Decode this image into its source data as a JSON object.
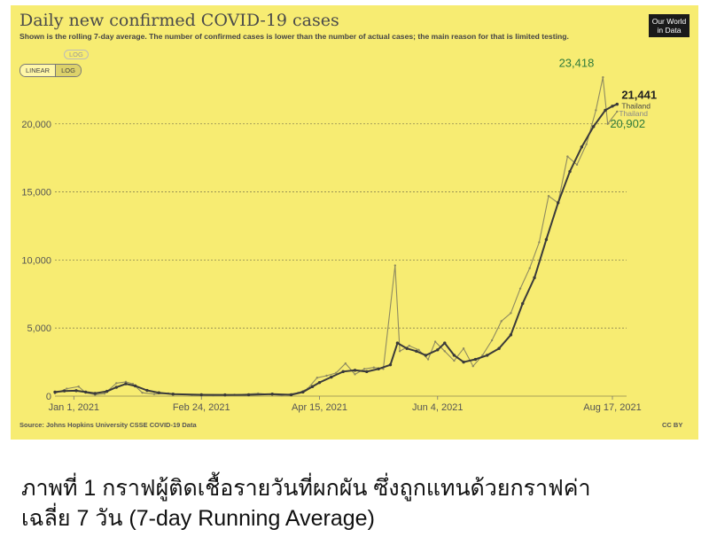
{
  "caption": {
    "line1": "ภาพที่ 1 กราฟผู้ติดเชื้อรายวันที่ผกผัน ซึ่งถูกแทนด้วยกราฟค่า",
    "line2": "เฉลี่ย 7 วัน (7-day Running Average)"
  },
  "panel": {
    "background": "#f7ec72",
    "logo": "Our World in Data",
    "toggle_linear": "LINEAR",
    "toggle_log": "LOG",
    "log_ghost": "LOG",
    "source": "Source: Johns Hopkins University CSSE COVID-19 Data",
    "license": "CC BY"
  },
  "chart_data": {
    "type": "line",
    "title": "Daily new confirmed COVID-19 cases",
    "subtitle": "Shown is the rolling 7-day average. The number of confirmed cases is lower than the number of actual cases; the main reason for that is limited testing.",
    "ylim": [
      0,
      23500
    ],
    "y_ticks": [
      0,
      5000,
      10000,
      15000,
      20000
    ],
    "y_tick_labels": [
      "0",
      "5,000",
      "10,000",
      "15,000",
      "20,000"
    ],
    "x_range": [
      "2020-12-24",
      "2021-08-23"
    ],
    "x_ticks": [
      "2021-01-01",
      "2021-02-24",
      "2021-04-15",
      "2021-06-04",
      "2021-08-17"
    ],
    "x_tick_labels": [
      "Jan 1, 2021",
      "Feb 24, 2021",
      "Apr 15, 2021",
      "Jun 4, 2021",
      "Aug 17, 2021"
    ],
    "grid": "horizontal dashed",
    "series": [
      {
        "name": "Thailand",
        "role": "7-day rolling average",
        "color": "#3a3a3a",
        "end_label": "21,441",
        "points": [
          [
            "2020-12-24",
            300
          ],
          [
            "2020-12-28",
            380
          ],
          [
            "2021-01-02",
            400
          ],
          [
            "2021-01-06",
            300
          ],
          [
            "2021-01-10",
            200
          ],
          [
            "2021-01-15",
            350
          ],
          [
            "2021-01-19",
            650
          ],
          [
            "2021-01-23",
            900
          ],
          [
            "2021-01-27",
            750
          ],
          [
            "2021-02-01",
            420
          ],
          [
            "2021-02-06",
            250
          ],
          [
            "2021-02-12",
            150
          ],
          [
            "2021-02-24",
            100
          ],
          [
            "2021-03-06",
            90
          ],
          [
            "2021-03-16",
            100
          ],
          [
            "2021-03-26",
            150
          ],
          [
            "2021-04-03",
            100
          ],
          [
            "2021-04-08",
            300
          ],
          [
            "2021-04-12",
            700
          ],
          [
            "2021-04-15",
            1000
          ],
          [
            "2021-04-20",
            1400
          ],
          [
            "2021-04-25",
            1800
          ],
          [
            "2021-04-30",
            1900
          ],
          [
            "2021-05-05",
            1800
          ],
          [
            "2021-05-10",
            2000
          ],
          [
            "2021-05-15",
            2300
          ],
          [
            "2021-05-18",
            3900
          ],
          [
            "2021-05-22",
            3500
          ],
          [
            "2021-05-26",
            3300
          ],
          [
            "2021-05-30",
            3000
          ],
          [
            "2021-06-04",
            3400
          ],
          [
            "2021-06-07",
            3900
          ],
          [
            "2021-06-11",
            3000
          ],
          [
            "2021-06-15",
            2500
          ],
          [
            "2021-06-20",
            2700
          ],
          [
            "2021-06-25",
            3000
          ],
          [
            "2021-06-30",
            3500
          ],
          [
            "2021-07-05",
            4500
          ],
          [
            "2021-07-10",
            6800
          ],
          [
            "2021-07-15",
            8700
          ],
          [
            "2021-07-20",
            11500
          ],
          [
            "2021-07-25",
            14200
          ],
          [
            "2021-07-30",
            16500
          ],
          [
            "2021-08-04",
            18300
          ],
          [
            "2021-08-09",
            19800
          ],
          [
            "2021-08-14",
            21000
          ],
          [
            "2021-08-17",
            21300
          ],
          [
            "2021-08-19",
            21441
          ]
        ]
      },
      {
        "name": "Thailand",
        "role": "daily new cases",
        "color": "#8e8a60",
        "peak_label": "23,418",
        "end_label": "20,902",
        "points": [
          [
            "2020-12-24",
            200
          ],
          [
            "2020-12-29",
            550
          ],
          [
            "2021-01-03",
            700
          ],
          [
            "2021-01-06",
            250
          ],
          [
            "2021-01-10",
            100
          ],
          [
            "2021-01-14",
            180
          ],
          [
            "2021-01-19",
            950
          ],
          [
            "2021-01-23",
            1050
          ],
          [
            "2021-01-26",
            900
          ],
          [
            "2021-01-30",
            250
          ],
          [
            "2021-02-04",
            150
          ],
          [
            "2021-02-10",
            200
          ],
          [
            "2021-02-20",
            80
          ],
          [
            "2021-03-01",
            50
          ],
          [
            "2021-03-10",
            100
          ],
          [
            "2021-03-20",
            200
          ],
          [
            "2021-03-30",
            50
          ],
          [
            "2021-04-06",
            250
          ],
          [
            "2021-04-10",
            550
          ],
          [
            "2021-04-14",
            1350
          ],
          [
            "2021-04-18",
            1500
          ],
          [
            "2021-04-22",
            1700
          ],
          [
            "2021-04-26",
            2400
          ],
          [
            "2021-04-30",
            1600
          ],
          [
            "2021-05-04",
            2000
          ],
          [
            "2021-05-08",
            2100
          ],
          [
            "2021-05-12",
            2000
          ],
          [
            "2021-05-17",
            9600
          ],
          [
            "2021-05-19",
            3300
          ],
          [
            "2021-05-23",
            3700
          ],
          [
            "2021-05-27",
            3400
          ],
          [
            "2021-05-31",
            2700
          ],
          [
            "2021-06-03",
            4000
          ],
          [
            "2021-06-07",
            3300
          ],
          [
            "2021-06-11",
            2600
          ],
          [
            "2021-06-15",
            3500
          ],
          [
            "2021-06-19",
            2200
          ],
          [
            "2021-06-23",
            3000
          ],
          [
            "2021-06-27",
            4100
          ],
          [
            "2021-07-01",
            5500
          ],
          [
            "2021-07-05",
            6100
          ],
          [
            "2021-07-09",
            7900
          ],
          [
            "2021-07-13",
            9400
          ],
          [
            "2021-07-17",
            11300
          ],
          [
            "2021-07-21",
            14700
          ],
          [
            "2021-07-25",
            14200
          ],
          [
            "2021-07-29",
            17600
          ],
          [
            "2021-08-02",
            17000
          ],
          [
            "2021-08-06",
            18500
          ],
          [
            "2021-08-10",
            21000
          ],
          [
            "2021-08-13",
            23418
          ],
          [
            "2021-08-15",
            20000
          ],
          [
            "2021-08-19",
            20902
          ]
        ]
      }
    ]
  }
}
